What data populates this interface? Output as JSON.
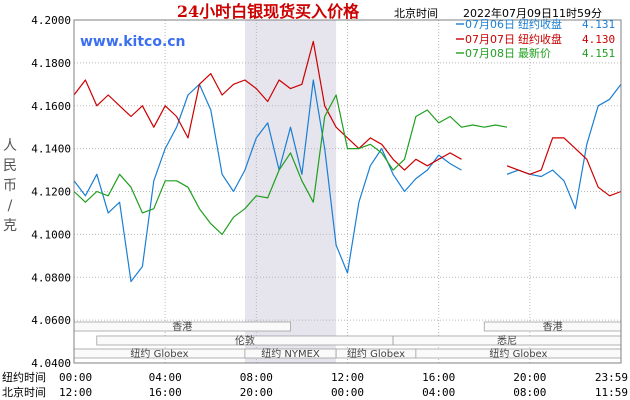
{
  "chart_data": {
    "type": "line",
    "title": "24小时白银现货买入价格",
    "subtitle_left": "北京时间",
    "timestamp": "2022年07月09日11时59分",
    "watermark": "www.kitco.cn",
    "ylabel": "人民币/克",
    "ylim": [
      4.04,
      4.2
    ],
    "y_ticks": [
      "4.2000",
      "4.1800",
      "4.1600",
      "4.1400",
      "4.1200",
      "4.1000",
      "4.0800",
      "4.0600",
      "4.0400"
    ],
    "x_rows": [
      {
        "label": "纽约时间",
        "ticks": [
          "00:00",
          "04:00",
          "08:00",
          "12:00",
          "16:00",
          "20:00",
          "23:59"
        ]
      },
      {
        "label": "北京时间",
        "ticks": [
          "12:00",
          "16:00",
          "20:00",
          "00:00",
          "04:00",
          "08:00",
          "11:59"
        ]
      }
    ],
    "x": [
      0,
      0.5,
      1,
      1.5,
      2,
      2.5,
      3,
      3.5,
      4,
      4.5,
      5,
      5.5,
      6,
      6.5,
      7,
      7.5,
      8,
      8.5,
      9,
      9.5,
      10,
      10.5,
      11,
      11.5,
      12,
      12.5,
      13,
      13.5,
      14,
      14.5,
      15,
      15.5,
      16,
      16.5,
      17,
      17.5,
      18,
      18.5,
      19,
      19.5,
      20,
      20.5,
      21,
      21.5,
      22,
      22.5,
      23,
      23.5,
      24
    ],
    "series": [
      {
        "name": "07月06日",
        "closing_label": "纽约收盘",
        "closing_value": "4.131",
        "color": "#1a7fd4",
        "values": [
          4.125,
          4.118,
          4.128,
          4.11,
          4.115,
          4.078,
          4.085,
          4.125,
          4.14,
          4.15,
          4.165,
          4.17,
          4.158,
          4.128,
          4.12,
          4.13,
          4.145,
          4.152,
          4.13,
          4.15,
          4.128,
          4.172,
          4.14,
          4.095,
          4.082,
          4.115,
          4.132,
          4.14,
          4.128,
          4.12,
          4.126,
          4.13,
          4.137,
          4.133,
          4.13,
          null,
          null,
          null,
          4.128,
          4.13,
          4.128,
          4.127,
          4.13,
          4.125,
          4.112,
          4.142,
          4.16,
          4.163,
          4.17
        ]
      },
      {
        "name": "07月07日",
        "closing_label": "纽约收盘",
        "closing_value": "4.130",
        "color": "#cc0000",
        "values": [
          4.165,
          4.172,
          4.16,
          4.165,
          4.16,
          4.155,
          4.16,
          4.15,
          4.16,
          4.155,
          4.145,
          4.17,
          4.175,
          4.165,
          4.17,
          4.172,
          4.168,
          4.162,
          4.172,
          4.168,
          4.17,
          4.19,
          4.16,
          4.15,
          4.145,
          4.14,
          4.145,
          4.142,
          4.135,
          4.13,
          4.135,
          4.132,
          4.135,
          4.138,
          4.135,
          null,
          null,
          null,
          4.132,
          4.13,
          4.128,
          4.13,
          4.145,
          4.145,
          4.14,
          4.135,
          4.122,
          4.118,
          4.12
        ]
      },
      {
        "name": "07月08日",
        "closing_label": "最新价",
        "closing_value": "4.151",
        "color": "#1f9f1f",
        "values": [
          4.12,
          4.115,
          4.12,
          4.118,
          4.128,
          4.122,
          4.11,
          4.112,
          4.125,
          4.125,
          4.122,
          4.112,
          4.105,
          4.1,
          4.108,
          4.112,
          4.118,
          4.117,
          4.13,
          4.138,
          4.125,
          4.115,
          4.155,
          4.165,
          4.14,
          4.14,
          4.142,
          4.138,
          4.13,
          4.135,
          4.155,
          4.158,
          4.152,
          4.155,
          4.15,
          4.151,
          4.15,
          4.151,
          4.15,
          null,
          null,
          null,
          null,
          null,
          null,
          null,
          null,
          null,
          null
        ]
      }
    ],
    "sessions": [
      {
        "name": "香港",
        "start": 0,
        "end": 9.5,
        "row": 1
      },
      {
        "name": "伦敦",
        "start": 1,
        "end": 14,
        "row": 2
      },
      {
        "name": "纽约 Globex",
        "start": 0,
        "end": 7.5,
        "row": 3
      },
      {
        "name": "纽约 NYMEX",
        "start": 7.5,
        "end": 11.5,
        "row": 3
      },
      {
        "name": "纽约 Globex",
        "start": 11.5,
        "end": 15,
        "row": 3
      },
      {
        "name": "悉尼",
        "start": 14,
        "end": 24,
        "row": 2
      },
      {
        "name": "香港",
        "start": 18,
        "end": 24,
        "row": 1
      },
      {
        "name": "纽约 Globex",
        "start": 15,
        "end": 24,
        "row": 3
      }
    ],
    "grid": true,
    "legend_position": "top-right"
  }
}
